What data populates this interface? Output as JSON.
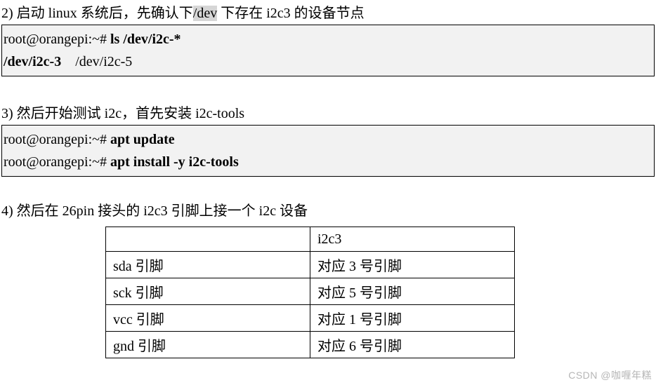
{
  "step2": {
    "text_pre": "2)  启动 linux 系统后，先确认下",
    "text_hl": "/dev",
    "text_post": " 下存在 i2c3 的设备节点",
    "code": {
      "line1_prompt": "root@orangepi:~# ",
      "line1_cmd": "ls /dev/i2c-*",
      "line2_bold": "/dev/i2c-3",
      "line2_rest": "    /dev/i2c-5"
    }
  },
  "step3": {
    "text": "3)  然后开始测试 i2c，首先安装 i2c-tools",
    "code": {
      "line1_prompt": "root@orangepi:~# ",
      "line1_cmd": "apt update",
      "line2_prompt": "root@orangepi:~# ",
      "line2_cmd": "apt install -y i2c-tools"
    }
  },
  "step4": {
    "text": "4)  然后在 26pin 接头的 i2c3 引脚上接一个 i2c 设备",
    "table": {
      "header": [
        "",
        "i2c3"
      ],
      "rows": [
        [
          "sda 引脚",
          "对应 3 号引脚"
        ],
        [
          "sck 引脚",
          "对应 5 号引脚"
        ],
        [
          "vcc 引脚",
          "对应 1 号引脚"
        ],
        [
          "gnd 引脚",
          "对应 6 号引脚"
        ]
      ]
    }
  },
  "watermark": "CSDN @咖喱年糕"
}
